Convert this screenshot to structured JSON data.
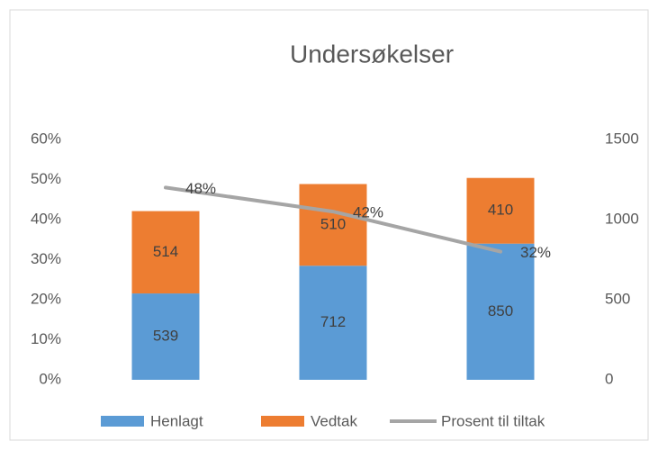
{
  "chart_data": {
    "type": "bar",
    "stacked": true,
    "title": "Undersøkelser",
    "categories": [
      null,
      null,
      null
    ],
    "series": [
      {
        "name": "Henlagt",
        "color": "#5b9bd5",
        "axis": "y2",
        "values": [
          539,
          712,
          850
        ]
      },
      {
        "name": "Vedtak",
        "color": "#ed7d31",
        "axis": "y2",
        "values": [
          514,
          510,
          410
        ]
      },
      {
        "name": "Prosent til tiltak",
        "type": "line",
        "color": "#a5a5a5",
        "values": [
          48,
          42,
          32
        ],
        "value_labels": [
          "48%",
          "42%",
          "32%"
        ]
      }
    ],
    "ylim": [
      0,
      60
    ],
    "yticks": [
      {
        "value": 0,
        "label": "0%"
      },
      {
        "value": 10,
        "label": "10%"
      },
      {
        "value": 20,
        "label": "20%"
      },
      {
        "value": 30,
        "label": "30%"
      },
      {
        "value": 40,
        "label": "40%"
      },
      {
        "value": 50,
        "label": "50%"
      },
      {
        "value": 60,
        "label": "60%"
      }
    ],
    "y2lim": [
      0,
      1500
    ],
    "y2ticks": [
      0,
      500,
      1000,
      1500
    ],
    "grid": false,
    "legend": "bottom"
  }
}
